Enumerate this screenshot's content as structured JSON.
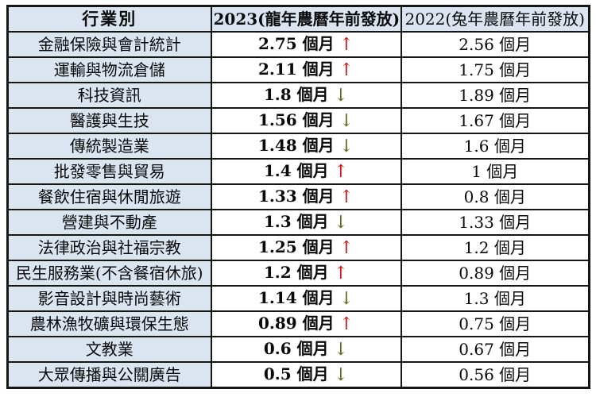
{
  "table": {
    "columns": [
      {
        "label": "行業別"
      },
      {
        "label": "2023(龍年農曆年前發放)"
      },
      {
        "label": "2022(兔年農曆年前發放)"
      }
    ],
    "rows": [
      {
        "label": "金融保險與會計統計",
        "v2023": "2.75 個月",
        "trend": "up",
        "v2022": "2.56 個月"
      },
      {
        "label": "運輸與物流倉儲",
        "v2023": "2.11 個月",
        "trend": "up",
        "v2022": "1.75 個月"
      },
      {
        "label": "科技資訊",
        "v2023": "1.8 個月",
        "trend": "down",
        "v2022": "1.89 個月"
      },
      {
        "label": "醫護與生技",
        "v2023": "1.56 個月",
        "trend": "down",
        "v2022": "1.67 個月"
      },
      {
        "label": "傳統製造業",
        "v2023": "1.48 個月",
        "trend": "down",
        "v2022": "1.6 個月"
      },
      {
        "label": "批發零售與貿易",
        "v2023": "1.4 個月",
        "trend": "up",
        "v2022": "1 個月"
      },
      {
        "label": "餐飲住宿與休閒旅遊",
        "v2023": "1.33 個月",
        "trend": "up",
        "v2022": "0.8 個月"
      },
      {
        "label": "營建與不動產",
        "v2023": "1.3 個月",
        "trend": "down",
        "v2022": "1.33 個月"
      },
      {
        "label": "法律政治與社福宗教",
        "v2023": "1.25 個月",
        "trend": "up",
        "v2022": "1.2 個月"
      },
      {
        "label": "民生服務業(不含餐宿休旅)",
        "v2023": "1.2 個月",
        "trend": "up",
        "v2022": "0.89 個月"
      },
      {
        "label": "影音設計與時尚藝術",
        "v2023": "1.14 個月",
        "trend": "down",
        "v2022": "1.3 個月"
      },
      {
        "label": "農林漁牧礦與環保生態",
        "v2023": "0.89 個月",
        "trend": "up",
        "v2022": "0.75 個月"
      },
      {
        "label": "文教業",
        "v2023": "0.6 個月",
        "trend": "down",
        "v2022": "0.67 個月"
      },
      {
        "label": "大眾傳播與公關廣告",
        "v2023": "0.5 個月",
        "trend": "down",
        "v2022": "0.56 個月"
      }
    ]
  },
  "icons": {
    "up": "↑",
    "down": "↓"
  },
  "colors": {
    "header_bg": "#dbe5f1",
    "label_column_bg": "#dbe5f1",
    "cell_bg": "#ffffff",
    "border": "#161616",
    "arrow_up": "#dd1111",
    "arrow_down": "#5c6b1c",
    "text": "#0a0a0a"
  },
  "chart_data": {
    "type": "table",
    "title": "",
    "columns": [
      "行業別",
      "2023(龍年農曆年前發放)",
      "2022(兔年農曆年前發放)"
    ],
    "unit": "個月",
    "categories": [
      "金融保險與會計統計",
      "運輸與物流倉儲",
      "科技資訊",
      "醫護與生技",
      "傳統製造業",
      "批發零售與貿易",
      "餐飲住宿與休閒旅遊",
      "營建與不動產",
      "法律政治與社福宗教",
      "民生服務業(不含餐宿休旅)",
      "影音設計與時尚藝術",
      "農林漁牧礦與環保生態",
      "文教業",
      "大眾傳播與公關廣告"
    ],
    "series": [
      {
        "name": "2023(龍年農曆年前發放)",
        "values": [
          2.75,
          2.11,
          1.8,
          1.56,
          1.48,
          1.4,
          1.33,
          1.3,
          1.25,
          1.2,
          1.14,
          0.89,
          0.6,
          0.5
        ]
      },
      {
        "name": "2022(兔年農曆年前發放)",
        "values": [
          2.56,
          1.75,
          1.89,
          1.67,
          1.6,
          1,
          0.8,
          1.33,
          1.2,
          0.89,
          1.3,
          0.75,
          0.67,
          0.56
        ]
      }
    ],
    "trend_vs_previous_year": [
      "up",
      "up",
      "down",
      "down",
      "down",
      "up",
      "up",
      "down",
      "up",
      "up",
      "down",
      "up",
      "down",
      "down"
    ]
  }
}
